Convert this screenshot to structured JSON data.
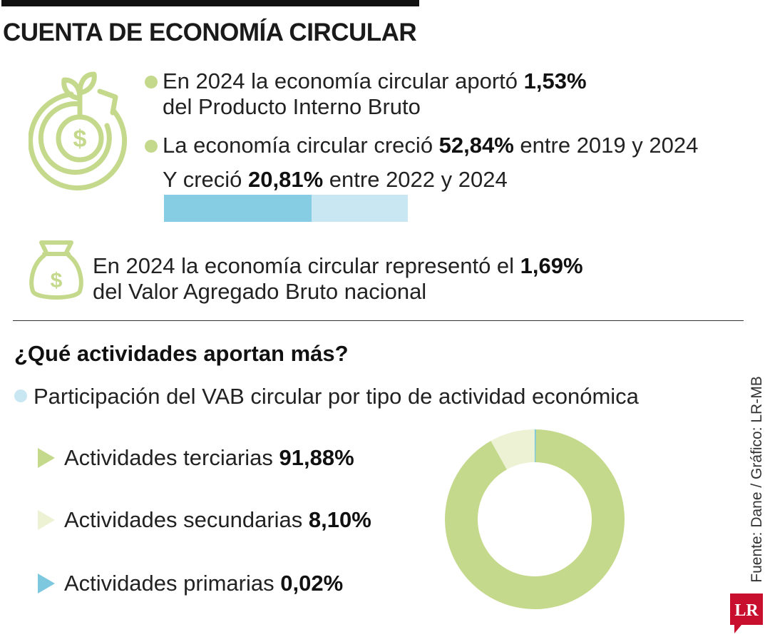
{
  "title": "CUENTA DE ECONOMÍA CIRCULAR",
  "facts": {
    "pib": {
      "pre": "En 2024 la economía circular aportó ",
      "value": "1,53%",
      "line2": "del Producto Interno Bruto"
    },
    "growth": {
      "pre": "La economía circular creció ",
      "value": "52,84%",
      "post": " entre 2019 y 2024"
    },
    "growth2": {
      "pre": "Y creció ",
      "value": "20,81%",
      "post": " entre 2022 y 2024"
    },
    "vab": {
      "pre": "En 2024 la economía circular representó el ",
      "value": "1,69%",
      "line2": "del Valor Agregado Bruto nacional"
    }
  },
  "growth_bar": {
    "total_pct": 52.84,
    "segment_pct": 20.81,
    "colors": {
      "dark": "#86cde3",
      "light": "#c9e7f2"
    }
  },
  "section": {
    "title": "¿Qué actividades aportan más?",
    "subtitle": "Participación del VAB circular por tipo de actividad económica"
  },
  "chart_data": {
    "type": "pie",
    "donut": true,
    "categories": [
      "Actividades terciarias",
      "Actividades secundarias",
      "Actividades primarias"
    ],
    "values": [
      91.88,
      8.1,
      0.02
    ],
    "labels": [
      "91,88%",
      "8,10%",
      "0,02%"
    ],
    "colors": [
      "#c5d98c",
      "#ecf2d3",
      "#7ec8df"
    ]
  },
  "source": "Fuente: Dane / Gráfico: LR-MB",
  "logo": "LR",
  "colors": {
    "green": "#c5d98c",
    "light_blue": "#c9e7f2",
    "red": "#c8102e"
  },
  "icons": {
    "growth": "money-cycle-icon",
    "bag": "money-bag-icon"
  }
}
